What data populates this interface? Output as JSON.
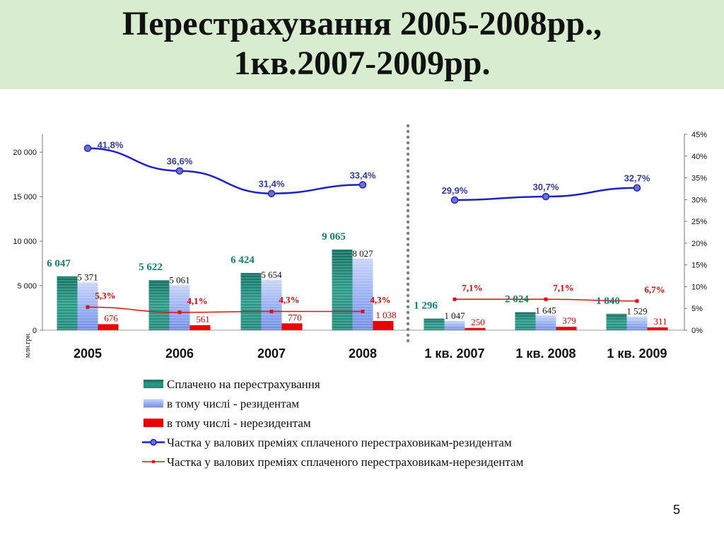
{
  "slide": {
    "title_line1": "Перестрахування 2005-2008рр.,",
    "title_line2": "1кв.2007-2009рр.",
    "page_number": "5"
  },
  "colors": {
    "paid": "#1f8a7a",
    "residents": "#8fa8f0",
    "nonresidents": "#ee0000",
    "share_residents": "#1c22c8",
    "share_nonresidents": "#e01010",
    "title_band": "#d8ecd0"
  },
  "chart_data": {
    "type": "bar",
    "unit_label": "млн.грн.",
    "categories": [
      "2005",
      "2006",
      "2007",
      "2008",
      "1 кв. 2007",
      "1 кв. 2008",
      "1 кв. 2009"
    ],
    "series": [
      {
        "name": "Сплачено на перестрахування",
        "type": "bar",
        "axis": "left",
        "values": [
          6047,
          5622,
          6424,
          9065,
          1296,
          2024,
          1840
        ],
        "labels": [
          "6 047",
          "5 622",
          "6 424",
          "9 065",
          "1 296",
          "2 024",
          "1 840"
        ]
      },
      {
        "name": "в тому числі - резидентам",
        "type": "bar",
        "axis": "left",
        "values": [
          5371,
          5061,
          5654,
          8027,
          1047,
          1645,
          1529
        ],
        "labels": [
          "5 371",
          "5 061",
          "5 654",
          "8 027",
          "1 047",
          "1 645",
          "1 529"
        ]
      },
      {
        "name": "в тому числі - нерезидентам",
        "type": "bar",
        "axis": "left",
        "values": [
          676,
          561,
          770,
          1038,
          250,
          379,
          311
        ],
        "labels": [
          "676",
          "561",
          "770",
          "1 038",
          "250",
          "379",
          "311"
        ]
      },
      {
        "name": "Частка у валових преміях сплаченого перестраховикам-резидентам",
        "type": "line",
        "axis": "right",
        "values": [
          41.8,
          36.6,
          31.4,
          33.4,
          29.9,
          30.7,
          32.7
        ],
        "labels": [
          "41,8%",
          "36,6%",
          "31,4%",
          "33,4%",
          "29,9%",
          "30,7%",
          "32,7%"
        ]
      },
      {
        "name": "Частка у валових преміях сплаченого перестраховикам-нерезидентам",
        "type": "line",
        "axis": "right",
        "values": [
          5.3,
          4.1,
          4.3,
          4.3,
          7.1,
          7.1,
          6.7
        ],
        "labels": [
          "5,3%",
          "4,1%",
          "4,3%",
          "4,3%",
          "7,1%",
          "7,1%",
          "6,7%"
        ]
      }
    ],
    "y_left": {
      "min": 0,
      "max": 22000,
      "ticks": [
        0,
        5000,
        10000,
        15000,
        20000
      ],
      "tick_labels": [
        "0",
        "5 000",
        "10 000",
        "15 000",
        "20 000"
      ]
    },
    "y_right": {
      "min": 0,
      "max": 45,
      "ticks": [
        0,
        5,
        10,
        15,
        20,
        25,
        30,
        35,
        40,
        45
      ],
      "tick_labels": [
        "0%",
        "5%",
        "10%",
        "15%",
        "20%",
        "25%",
        "30%",
        "35%",
        "40%",
        "45%"
      ]
    },
    "divider_after_index": 3,
    "legend_position": "bottom"
  }
}
